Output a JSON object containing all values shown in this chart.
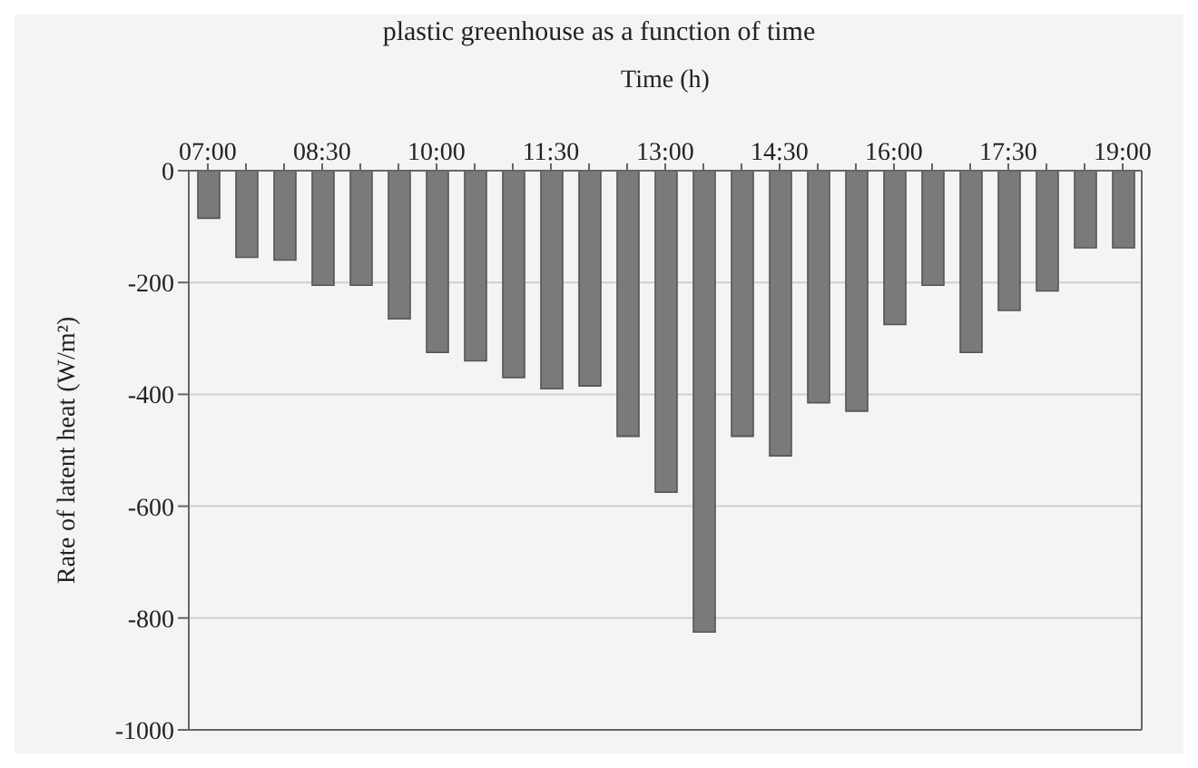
{
  "chart_data": {
    "type": "bar",
    "title": "plastic greenhouse as a function of time",
    "xlabel": "Time (h)",
    "ylabel": "Rate of latent heat (W/m²)",
    "categories": [
      "07:00",
      null,
      null,
      "08:30",
      null,
      null,
      "10:00",
      null,
      null,
      "11:30",
      null,
      null,
      "13:00",
      null,
      null,
      "14:30",
      null,
      null,
      "16:00",
      null,
      null,
      "17:30",
      null,
      null,
      "19:00"
    ],
    "values": [
      -85,
      -155,
      -160,
      -205,
      -205,
      -265,
      -325,
      -340,
      -370,
      -390,
      -385,
      -475,
      -575,
      -825,
      -475,
      -510,
      -415,
      -430,
      -275,
      -205,
      -325,
      -250,
      -215,
      -138,
      -138
    ],
    "color": "#7a7a7a",
    "ylim": [
      -1000,
      0
    ],
    "yticks": [
      0,
      -200,
      -400,
      -600,
      -800,
      -1000
    ],
    "grid": "y"
  }
}
